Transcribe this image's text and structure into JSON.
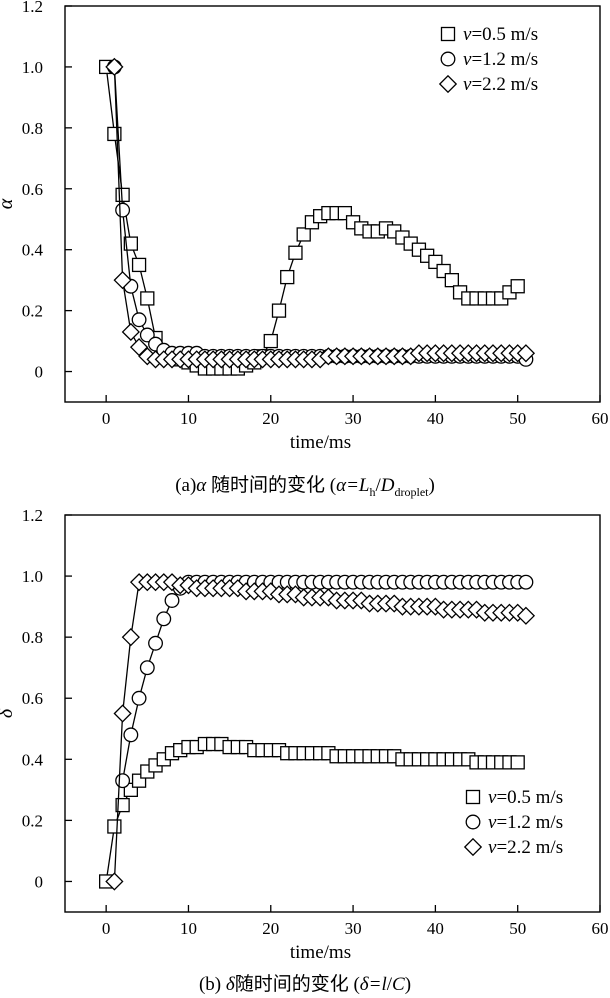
{
  "chart_data": [
    {
      "type": "scatter",
      "xlabel": "time/ms",
      "ylabel": "α",
      "xlim": [
        -5,
        60
      ],
      "ylim": [
        -0.1,
        1.2
      ],
      "xticks": [
        "0",
        "10",
        "20",
        "30",
        "40",
        "50",
        "60"
      ],
      "yticks": [
        "0",
        "0.2",
        "0.4",
        "0.6",
        "0.8",
        "1.0",
        "1.2"
      ],
      "grid": false,
      "legend_position": "top-right",
      "caption": {
        "prefix": "(a)",
        "greek": "α",
        "text": " 随时间的变化 (",
        "eq": "α=",
        "L": "L",
        "Lsub": "h",
        "slash": "/",
        "D": "D",
        "Dsub": "droplet",
        "close": ")"
      },
      "series": [
        {
          "name": "v=0.5 m/s",
          "legend_v": "v",
          "legend_rest": "=0.5 m/s",
          "marker": "square",
          "x": [
            0,
            1,
            2,
            3,
            4,
            5,
            6,
            7,
            8,
            9,
            10,
            11,
            12,
            13,
            14,
            15,
            16,
            17,
            18,
            19,
            20,
            21,
            22,
            23,
            24,
            25,
            26,
            27,
            28,
            29,
            30,
            31,
            32,
            33,
            34,
            35,
            36,
            37,
            38,
            39,
            40,
            41,
            42,
            43,
            44,
            45,
            46,
            47,
            48,
            49,
            50
          ],
          "y": [
            1.0,
            0.78,
            0.58,
            0.42,
            0.35,
            0.24,
            0.11,
            0.06,
            0.05,
            0.04,
            0.03,
            0.02,
            0.01,
            0.01,
            0.01,
            0.01,
            0.01,
            0.02,
            0.03,
            0.05,
            0.1,
            0.2,
            0.31,
            0.39,
            0.45,
            0.49,
            0.51,
            0.52,
            0.52,
            0.52,
            0.49,
            0.47,
            0.46,
            0.46,
            0.47,
            0.46,
            0.44,
            0.42,
            0.4,
            0.38,
            0.36,
            0.33,
            0.3,
            0.26,
            0.24,
            0.24,
            0.24,
            0.24,
            0.24,
            0.26,
            0.28
          ]
        },
        {
          "name": "v=1.2 m/s",
          "legend_v": "v",
          "legend_rest": "=1.2 m/s",
          "marker": "circle",
          "x": [
            1,
            2,
            3,
            4,
            5,
            6,
            7,
            8,
            9,
            10,
            11,
            12,
            13,
            14,
            15,
            16,
            17,
            18,
            19,
            20,
            21,
            22,
            23,
            24,
            25,
            26,
            27,
            28,
            29,
            30,
            31,
            32,
            33,
            34,
            35,
            36,
            37,
            38,
            39,
            40,
            41,
            42,
            43,
            44,
            45,
            46,
            47,
            48,
            49,
            50,
            51
          ],
          "y": [
            1.0,
            0.53,
            0.28,
            0.17,
            0.12,
            0.09,
            0.07,
            0.06,
            0.06,
            0.06,
            0.06,
            0.05,
            0.05,
            0.05,
            0.05,
            0.05,
            0.05,
            0.05,
            0.05,
            0.05,
            0.05,
            0.05,
            0.05,
            0.05,
            0.05,
            0.05,
            0.05,
            0.05,
            0.05,
            0.05,
            0.05,
            0.05,
            0.05,
            0.05,
            0.05,
            0.05,
            0.05,
            0.05,
            0.05,
            0.05,
            0.05,
            0.05,
            0.05,
            0.05,
            0.05,
            0.05,
            0.05,
            0.05,
            0.05,
            0.05,
            0.04
          ]
        },
        {
          "name": "v=2.2 m/s",
          "legend_v": "v",
          "legend_rest": "=2.2 m/s",
          "marker": "diamond",
          "x": [
            1,
            2,
            3,
            4,
            5,
            6,
            7,
            8,
            9,
            10,
            11,
            12,
            13,
            14,
            15,
            16,
            17,
            18,
            19,
            20,
            21,
            22,
            23,
            24,
            25,
            26,
            27,
            28,
            29,
            30,
            31,
            32,
            33,
            34,
            35,
            36,
            37,
            38,
            39,
            40,
            41,
            42,
            43,
            44,
            45,
            46,
            47,
            48,
            49,
            50,
            51
          ],
          "y": [
            1.0,
            0.3,
            0.13,
            0.08,
            0.05,
            0.04,
            0.04,
            0.04,
            0.04,
            0.04,
            0.04,
            0.04,
            0.04,
            0.04,
            0.04,
            0.04,
            0.04,
            0.04,
            0.04,
            0.04,
            0.04,
            0.04,
            0.04,
            0.04,
            0.04,
            0.04,
            0.05,
            0.05,
            0.05,
            0.05,
            0.05,
            0.05,
            0.05,
            0.05,
            0.05,
            0.05,
            0.05,
            0.06,
            0.06,
            0.06,
            0.06,
            0.06,
            0.06,
            0.06,
            0.06,
            0.06,
            0.06,
            0.06,
            0.06,
            0.06,
            0.06
          ]
        }
      ]
    },
    {
      "type": "scatter",
      "xlabel": "time/ms",
      "ylabel": "δ",
      "xlim": [
        -5,
        60
      ],
      "ylim": [
        -0.1,
        1.2
      ],
      "xticks": [
        "0",
        "10",
        "20",
        "30",
        "40",
        "50",
        "60"
      ],
      "yticks": [
        "0",
        "0.2",
        "0.4",
        "0.6",
        "0.8",
        "1.0",
        "1.2"
      ],
      "grid": false,
      "legend_position": "bottom-right",
      "caption": {
        "prefix": "(b) ",
        "greek": "δ",
        "text": "随时间的变化 (",
        "eq": "δ=",
        "l": "l",
        "slash": "/",
        "C": "C",
        "close": ")"
      },
      "series": [
        {
          "name": "v=0.5 m/s",
          "legend_v": "v",
          "legend_rest": "=0.5 m/s",
          "marker": "square",
          "x": [
            0,
            1,
            2,
            3,
            4,
            5,
            6,
            7,
            8,
            9,
            10,
            11,
            12,
            13,
            14,
            15,
            16,
            17,
            18,
            19,
            20,
            21,
            22,
            23,
            24,
            25,
            26,
            27,
            28,
            29,
            30,
            31,
            32,
            33,
            34,
            35,
            36,
            37,
            38,
            39,
            40,
            41,
            42,
            43,
            44,
            45,
            46,
            47,
            48,
            49,
            50
          ],
          "y": [
            0.0,
            0.18,
            0.25,
            0.3,
            0.33,
            0.36,
            0.38,
            0.4,
            0.42,
            0.43,
            0.44,
            0.44,
            0.45,
            0.45,
            0.45,
            0.44,
            0.44,
            0.44,
            0.43,
            0.43,
            0.43,
            0.43,
            0.42,
            0.42,
            0.42,
            0.42,
            0.42,
            0.42,
            0.41,
            0.41,
            0.41,
            0.41,
            0.41,
            0.41,
            0.41,
            0.41,
            0.4,
            0.4,
            0.4,
            0.4,
            0.4,
            0.4,
            0.4,
            0.4,
            0.4,
            0.39,
            0.39,
            0.39,
            0.39,
            0.39,
            0.39
          ]
        },
        {
          "name": "v=1.2 m/s",
          "legend_v": "v",
          "legend_rest": "=1.2 m/s",
          "marker": "circle",
          "x": [
            2,
            3,
            4,
            5,
            6,
            7,
            8,
            9,
            10,
            11,
            12,
            13,
            14,
            15,
            16,
            17,
            18,
            19,
            20,
            21,
            22,
            23,
            24,
            25,
            26,
            27,
            28,
            29,
            30,
            31,
            32,
            33,
            34,
            35,
            36,
            37,
            38,
            39,
            40,
            41,
            42,
            43,
            44,
            45,
            46,
            47,
            48,
            49,
            50,
            51
          ],
          "y": [
            0.33,
            0.48,
            0.6,
            0.7,
            0.78,
            0.86,
            0.92,
            0.96,
            0.98,
            0.98,
            0.98,
            0.98,
            0.98,
            0.98,
            0.98,
            0.98,
            0.98,
            0.98,
            0.98,
            0.98,
            0.98,
            0.98,
            0.98,
            0.98,
            0.98,
            0.98,
            0.98,
            0.98,
            0.98,
            0.98,
            0.98,
            0.98,
            0.98,
            0.98,
            0.98,
            0.98,
            0.98,
            0.98,
            0.98,
            0.98,
            0.98,
            0.98,
            0.98,
            0.98,
            0.98,
            0.98,
            0.98,
            0.98,
            0.98,
            0.98
          ]
        },
        {
          "name": "v=2.2 m/s",
          "legend_v": "v",
          "legend_rest": "=2.2 m/s",
          "marker": "diamond",
          "x": [
            1,
            2,
            3,
            4,
            5,
            6,
            7,
            8,
            9,
            10,
            11,
            12,
            13,
            14,
            15,
            16,
            17,
            18,
            19,
            20,
            21,
            22,
            23,
            24,
            25,
            26,
            27,
            28,
            29,
            30,
            31,
            32,
            33,
            34,
            35,
            36,
            37,
            38,
            39,
            40,
            41,
            42,
            43,
            44,
            45,
            46,
            47,
            48,
            49,
            50,
            51
          ],
          "y": [
            0.0,
            0.55,
            0.8,
            0.98,
            0.98,
            0.98,
            0.98,
            0.98,
            0.97,
            0.97,
            0.96,
            0.96,
            0.96,
            0.96,
            0.96,
            0.96,
            0.95,
            0.95,
            0.95,
            0.95,
            0.94,
            0.94,
            0.94,
            0.93,
            0.93,
            0.93,
            0.93,
            0.92,
            0.92,
            0.92,
            0.92,
            0.91,
            0.91,
            0.91,
            0.91,
            0.9,
            0.9,
            0.9,
            0.9,
            0.9,
            0.89,
            0.89,
            0.89,
            0.89,
            0.89,
            0.88,
            0.88,
            0.88,
            0.88,
            0.88,
            0.87
          ]
        }
      ]
    }
  ]
}
